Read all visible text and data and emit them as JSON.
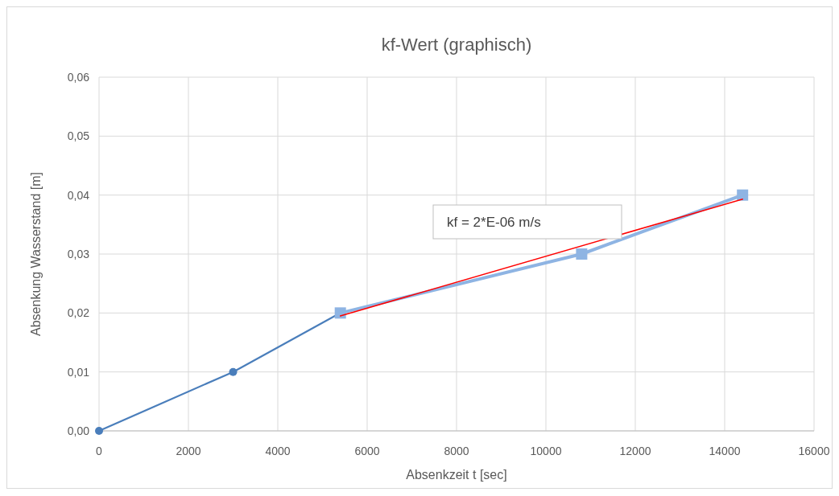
{
  "chart_data": {
    "type": "line",
    "title": "kf-Wert (graphisch)",
    "xlabel": "Absenkzeit t [sec]",
    "ylabel": "Absenkung Wasserstand [m]",
    "xlim": [
      0,
      16000
    ],
    "xticks": [
      0,
      2000,
      4000,
      6000,
      8000,
      10000,
      12000,
      14000,
      16000
    ],
    "ylim": [
      0,
      0.06
    ],
    "yticks": [
      {
        "value": 0,
        "label": "0,00"
      },
      {
        "value": 0.01,
        "label": "0,01"
      },
      {
        "value": 0.02,
        "label": "0,02"
      },
      {
        "value": 0.03,
        "label": "0,03"
      },
      {
        "value": 0.04,
        "label": "0,04"
      },
      {
        "value": 0.05,
        "label": "0,05"
      },
      {
        "value": 0.06,
        "label": "0,06"
      }
    ],
    "grid": true,
    "series": [
      {
        "color": "#4a7ebb",
        "marker": "circle",
        "x": [
          0,
          3000,
          5400
        ],
        "values": [
          0,
          0.01,
          0.02
        ]
      },
      {
        "color": "#8eb4e3",
        "marker": "square",
        "x": [
          5400,
          10800,
          14400
        ],
        "values": [
          0.02,
          0.03,
          0.04
        ]
      },
      {
        "color": "#ff0000",
        "marker": "none",
        "x": [
          5400,
          14400
        ],
        "values": [
          0.0195,
          0.0393
        ]
      }
    ],
    "annotations": [
      "kf = 2*E-06 m/s"
    ]
  }
}
